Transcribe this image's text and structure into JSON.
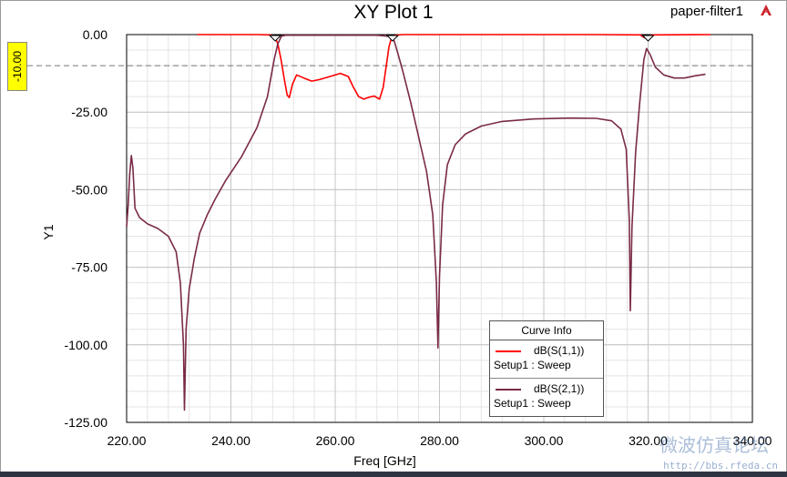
{
  "header": {
    "title": "XY Plot 1",
    "project": "paper-filter1"
  },
  "reference_line": {
    "value": -10,
    "label": "-10.00"
  },
  "legend": {
    "title": "Curve Info",
    "items": [
      {
        "name": "dB(S(1,1))",
        "sub": "Setup1 : Sweep",
        "color": "#ff0000"
      },
      {
        "name": "dB(S(2,1))",
        "sub": "Setup1 : Sweep",
        "color": "#7a2a48"
      }
    ]
  },
  "watermark": {
    "url": "http://bbs.rfeda.cn",
    "cn": "微波仿真论坛"
  },
  "chart_data": {
    "type": "line",
    "title": "XY Plot 1",
    "xlabel": "Freq [GHz]",
    "ylabel": "Y1",
    "xlim": [
      220,
      340
    ],
    "ylim": [
      -125,
      0
    ],
    "x_ticks": [
      "220.00",
      "240.00",
      "260.00",
      "280.00",
      "300.00",
      "320.00",
      "340.00"
    ],
    "y_ticks": [
      "0.00",
      "-25.00",
      "-50.00",
      "-75.00",
      "-100.00",
      "-125.00"
    ],
    "grid": true,
    "legend_position": "bottom-right",
    "series": [
      {
        "name": "dB(S(1,1))",
        "color": "#ff0000",
        "points": [
          [
            233.5,
            0
          ],
          [
            245,
            0
          ],
          [
            247.5,
            -0.1
          ],
          [
            248.4,
            -0.6
          ],
          [
            249,
            -3
          ],
          [
            249.6,
            -8
          ],
          [
            250.2,
            -14
          ],
          [
            250.8,
            -19.5
          ],
          [
            251.2,
            -20.3
          ],
          [
            251.8,
            -16
          ],
          [
            252.6,
            -13
          ],
          [
            254,
            -14
          ],
          [
            255.5,
            -15
          ],
          [
            257,
            -14.5
          ],
          [
            259,
            -13.5
          ],
          [
            261,
            -12.5
          ],
          [
            262.5,
            -13.5
          ],
          [
            263.5,
            -17
          ],
          [
            264.5,
            -20
          ],
          [
            265.5,
            -20.8
          ],
          [
            266.5,
            -20.2
          ],
          [
            267.5,
            -19.8
          ],
          [
            268.5,
            -20.8
          ],
          [
            269.2,
            -17
          ],
          [
            269.8,
            -10
          ],
          [
            270.3,
            -4
          ],
          [
            270.8,
            -1
          ],
          [
            271.5,
            -0.2
          ],
          [
            273,
            0
          ],
          [
            310,
            0
          ],
          [
            318.5,
            -0.1
          ],
          [
            319.3,
            -1
          ],
          [
            320,
            -0.5
          ],
          [
            321,
            -0.1
          ],
          [
            332,
            0
          ]
        ]
      },
      {
        "name": "dB(S(2,1))",
        "color": "#7a2a48",
        "points": [
          [
            220,
            -62
          ],
          [
            220.3,
            -55
          ],
          [
            220.6,
            -45
          ],
          [
            220.9,
            -39
          ],
          [
            221.2,
            -43
          ],
          [
            221.6,
            -56
          ],
          [
            222.5,
            -59
          ],
          [
            224,
            -61
          ],
          [
            226,
            -62.5
          ],
          [
            228,
            -65
          ],
          [
            229.5,
            -70
          ],
          [
            230.3,
            -80
          ],
          [
            230.9,
            -100
          ],
          [
            231.1,
            -121
          ],
          [
            231.4,
            -95
          ],
          [
            232,
            -82
          ],
          [
            233,
            -72
          ],
          [
            234,
            -64
          ],
          [
            235.5,
            -58
          ],
          [
            237,
            -53
          ],
          [
            239,
            -47
          ],
          [
            242,
            -39.5
          ],
          [
            245,
            -30
          ],
          [
            247,
            -20
          ],
          [
            248.3,
            -8
          ],
          [
            249,
            -3
          ],
          [
            249.7,
            -0.5
          ],
          [
            250.5,
            -0.2
          ],
          [
            268,
            -0.2
          ],
          [
            270.5,
            -0.6
          ],
          [
            271.3,
            -2
          ],
          [
            272,
            -6
          ],
          [
            273,
            -12
          ],
          [
            274.5,
            -22
          ],
          [
            276,
            -33
          ],
          [
            277.5,
            -44
          ],
          [
            278.7,
            -58
          ],
          [
            279.4,
            -80
          ],
          [
            279.7,
            -101
          ],
          [
            280,
            -78
          ],
          [
            280.6,
            -55
          ],
          [
            281.5,
            -42
          ],
          [
            283,
            -35.5
          ],
          [
            285,
            -32
          ],
          [
            288,
            -29.5
          ],
          [
            292,
            -28
          ],
          [
            298,
            -27.2
          ],
          [
            305,
            -26.9
          ],
          [
            310,
            -27
          ],
          [
            313,
            -27.8
          ],
          [
            314.8,
            -30.5
          ],
          [
            315.8,
            -37
          ],
          [
            316.4,
            -60
          ],
          [
            316.6,
            -89
          ],
          [
            316.9,
            -62
          ],
          [
            317.6,
            -38
          ],
          [
            318.4,
            -22
          ],
          [
            319.2,
            -8
          ],
          [
            319.7,
            -4.5
          ],
          [
            320.4,
            -6.5
          ],
          [
            321.4,
            -10.5
          ],
          [
            323,
            -13
          ],
          [
            325,
            -14
          ],
          [
            327,
            -14
          ],
          [
            329,
            -13.3
          ],
          [
            331,
            -12.8
          ]
        ]
      }
    ]
  }
}
